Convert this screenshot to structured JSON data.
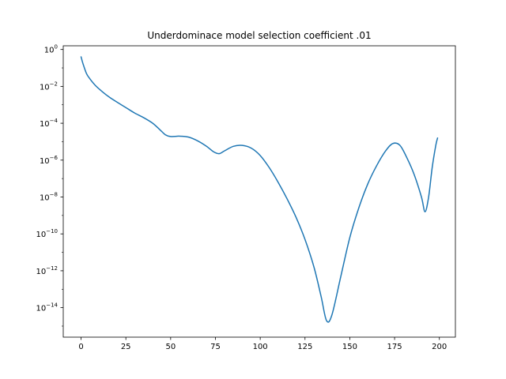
{
  "chart_data": {
    "type": "line",
    "title": "Underdominace model selection coefficient .01",
    "xlabel": "",
    "ylabel": "",
    "xlim": [
      -9.95,
      208.95
    ],
    "ylim_log10": [
      -15.6,
      0.2
    ],
    "yscale": "log",
    "grid": false,
    "line_color": "#1f77b4",
    "x_ticks": [
      {
        "value": 0,
        "label": "0"
      },
      {
        "value": 25,
        "label": "25"
      },
      {
        "value": 50,
        "label": "50"
      },
      {
        "value": 75,
        "label": "75"
      },
      {
        "value": 100,
        "label": "100"
      },
      {
        "value": 125,
        "label": "125"
      },
      {
        "value": 150,
        "label": "150"
      },
      {
        "value": 175,
        "label": "175"
      },
      {
        "value": 200,
        "label": "200"
      }
    ],
    "y_ticks": [
      {
        "exp": 0,
        "base": "10",
        "sup": "0"
      },
      {
        "exp": -2,
        "base": "10",
        "sup": "−2"
      },
      {
        "exp": -4,
        "base": "10",
        "sup": "−4"
      },
      {
        "exp": -6,
        "base": "10",
        "sup": "−6"
      },
      {
        "exp": -8,
        "base": "10",
        "sup": "−8"
      },
      {
        "exp": -10,
        "base": "10",
        "sup": "−10"
      },
      {
        "exp": -12,
        "base": "10",
        "sup": "−12"
      },
      {
        "exp": -14,
        "base": "10",
        "sup": "−14"
      }
    ],
    "series": [
      {
        "x": [
          0,
          1,
          3,
          5,
          8,
          12,
          16,
          20,
          25,
          30,
          35,
          40,
          44,
          47,
          50,
          55,
          60,
          65,
          70,
          74,
          77,
          80,
          85,
          90,
          95,
          100,
          105,
          110,
          115,
          120,
          125,
          130,
          134,
          137,
          140,
          145,
          150,
          155,
          160,
          165,
          170,
          174,
          178,
          182,
          186,
          190,
          192,
          194,
          196,
          198,
          199
        ],
        "log10y": [
          -0.4,
          -0.75,
          -1.3,
          -1.6,
          -1.95,
          -2.3,
          -2.6,
          -2.85,
          -3.15,
          -3.45,
          -3.7,
          -4.0,
          -4.35,
          -4.62,
          -4.72,
          -4.7,
          -4.75,
          -4.95,
          -5.25,
          -5.55,
          -5.65,
          -5.5,
          -5.25,
          -5.2,
          -5.35,
          -5.75,
          -6.4,
          -7.2,
          -8.1,
          -9.1,
          -10.3,
          -11.8,
          -13.4,
          -14.7,
          -14.4,
          -12.3,
          -10.2,
          -8.6,
          -7.3,
          -6.3,
          -5.5,
          -5.1,
          -5.2,
          -5.9,
          -6.8,
          -8.0,
          -8.8,
          -8.0,
          -6.4,
          -5.2,
          -4.8
        ]
      }
    ]
  }
}
